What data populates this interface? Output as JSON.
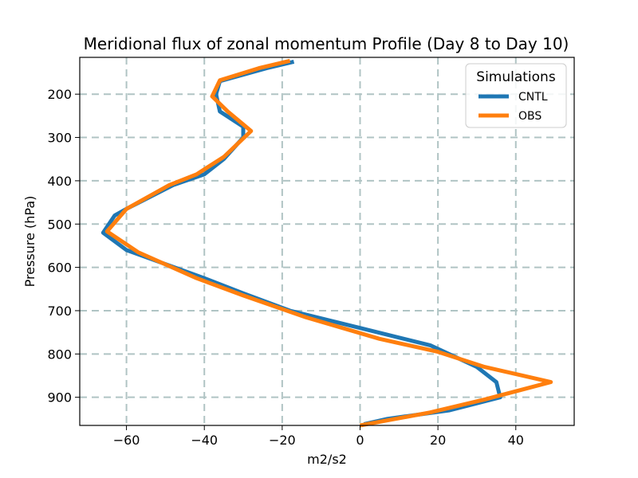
{
  "chart_data": {
    "type": "line",
    "title": "Meridional flux of zonal momentum Profile (Day 8 to Day 10)",
    "xlabel": "m2/s2",
    "ylabel": "Pressure (hPa)",
    "xlim": [
      -72,
      55
    ],
    "ylim": [
      965,
      115
    ],
    "y_inverted": true,
    "grid": true,
    "xticks": [
      -60,
      -40,
      -20,
      0,
      20,
      40
    ],
    "xtick_labels": [
      "−60",
      "−40",
      "−20",
      "0",
      "20",
      "40"
    ],
    "yticks": [
      200,
      300,
      400,
      500,
      600,
      700,
      800,
      900
    ],
    "ytick_labels": [
      "200",
      "300",
      "400",
      "500",
      "600",
      "700",
      "800",
      "900"
    ],
    "legend": {
      "title": "Simulations",
      "position": "top-right"
    },
    "series": [
      {
        "name": "CNTL",
        "color": "#1f77b4",
        "points": [
          {
            "x": -17,
            "y": 125
          },
          {
            "x": -24,
            "y": 140
          },
          {
            "x": -36,
            "y": 170
          },
          {
            "x": -37,
            "y": 200
          },
          {
            "x": -36,
            "y": 240
          },
          {
            "x": -30,
            "y": 275
          },
          {
            "x": -30,
            "y": 300
          },
          {
            "x": -35,
            "y": 350
          },
          {
            "x": -40,
            "y": 385
          },
          {
            "x": -48,
            "y": 410
          },
          {
            "x": -60,
            "y": 465
          },
          {
            "x": -63,
            "y": 480
          },
          {
            "x": -66,
            "y": 520
          },
          {
            "x": -60,
            "y": 560
          },
          {
            "x": -40,
            "y": 625
          },
          {
            "x": -30,
            "y": 660
          },
          {
            "x": -18,
            "y": 700
          },
          {
            "x": 0,
            "y": 740
          },
          {
            "x": 18,
            "y": 780
          },
          {
            "x": 30,
            "y": 830
          },
          {
            "x": 35,
            "y": 865
          },
          {
            "x": 36,
            "y": 900
          },
          {
            "x": 23,
            "y": 930
          },
          {
            "x": 7,
            "y": 950
          },
          {
            "x": 1,
            "y": 962
          }
        ]
      },
      {
        "name": "OBS",
        "color": "#ff7f0e",
        "points": [
          {
            "x": -18,
            "y": 123
          },
          {
            "x": -26,
            "y": 140
          },
          {
            "x": -36,
            "y": 168
          },
          {
            "x": -38,
            "y": 205
          },
          {
            "x": -34,
            "y": 240
          },
          {
            "x": -30,
            "y": 270
          },
          {
            "x": -28,
            "y": 285
          },
          {
            "x": -35,
            "y": 345
          },
          {
            "x": -42,
            "y": 385
          },
          {
            "x": -49,
            "y": 410
          },
          {
            "x": -60,
            "y": 465
          },
          {
            "x": -65,
            "y": 517
          },
          {
            "x": -57,
            "y": 565
          },
          {
            "x": -42,
            "y": 625
          },
          {
            "x": -30,
            "y": 665
          },
          {
            "x": -14,
            "y": 715
          },
          {
            "x": 5,
            "y": 765
          },
          {
            "x": 20,
            "y": 795
          },
          {
            "x": 32,
            "y": 830
          },
          {
            "x": 49,
            "y": 865
          },
          {
            "x": 32,
            "y": 905
          },
          {
            "x": 18,
            "y": 935
          },
          {
            "x": 6,
            "y": 955
          },
          {
            "x": 0,
            "y": 965
          }
        ]
      }
    ]
  }
}
